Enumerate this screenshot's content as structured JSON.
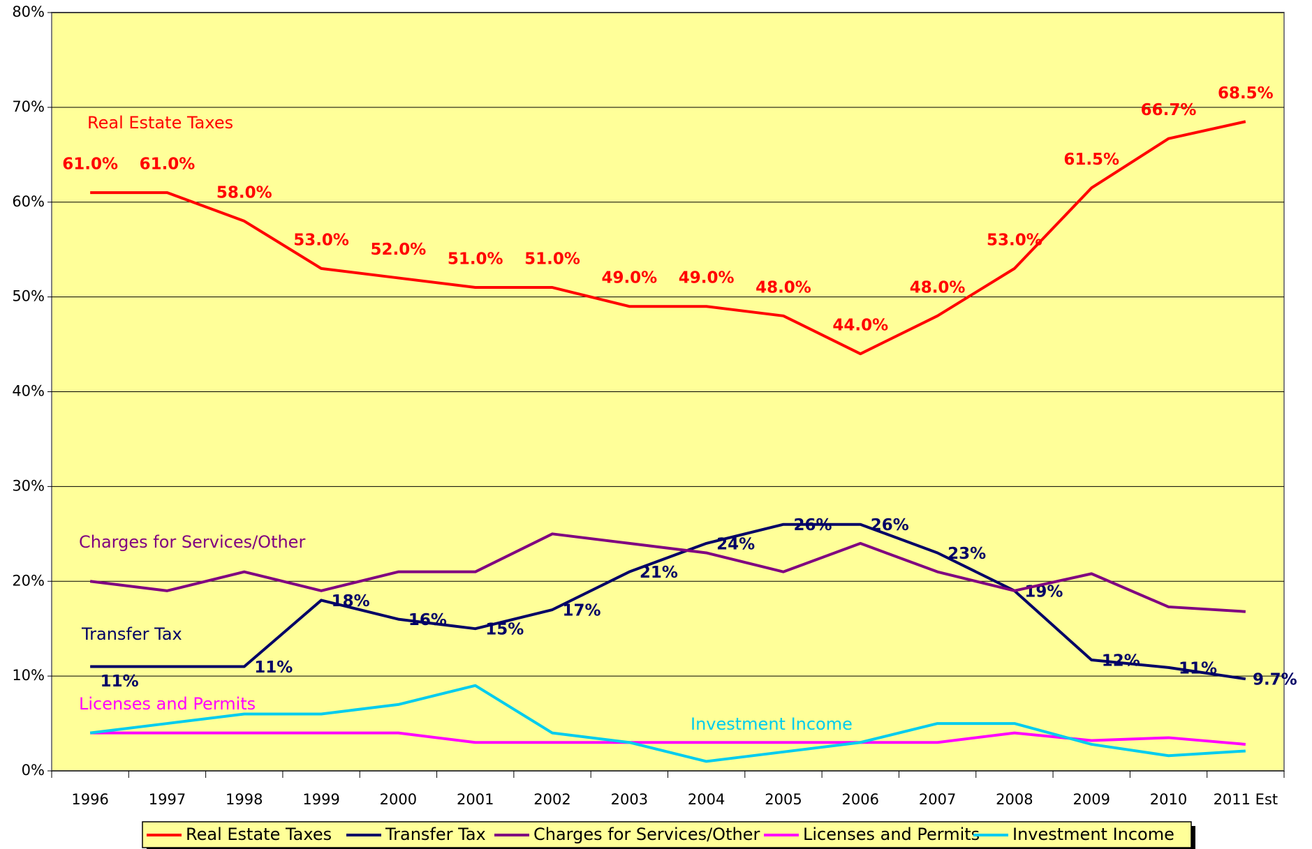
{
  "chart_data": {
    "type": "line",
    "categories": [
      "1996",
      "1997",
      "1998",
      "1999",
      "2000",
      "2001",
      "2002",
      "2003",
      "2004",
      "2005",
      "2006",
      "2007",
      "2008",
      "2009",
      "2010",
      "2011 Est"
    ],
    "ylim": [
      0,
      80
    ],
    "yticks": [
      {
        "value": 0,
        "label": "0%"
      },
      {
        "value": 10,
        "label": "10%"
      },
      {
        "value": 20,
        "label": "20%"
      },
      {
        "value": 30,
        "label": "30%"
      },
      {
        "value": 40,
        "label": "40%"
      },
      {
        "value": 50,
        "label": "50%"
      },
      {
        "value": 60,
        "label": "60%"
      },
      {
        "value": 70,
        "label": "70%"
      },
      {
        "value": 80,
        "label": "80%"
      }
    ],
    "grid": true,
    "legend": "bottom",
    "series": [
      {
        "name": "Real Estate Taxes",
        "color": "#ff0000",
        "values": [
          61,
          61,
          58,
          53,
          52,
          51,
          51,
          49,
          49,
          48,
          44,
          48,
          53,
          61.5,
          66.7,
          68.5
        ],
        "value_labels": [
          "61.0%",
          "61.0%",
          "58.0%",
          "53.0%",
          "52.0%",
          "51.0%",
          "51.0%",
          "49.0%",
          "49.0%",
          "48.0%",
          "44.0%",
          "48.0%",
          "53.0%",
          "61.5%",
          "66.7%",
          "68.5%"
        ]
      },
      {
        "name": "Transfer Tax",
        "color": "#000066",
        "values": [
          11,
          11,
          11,
          18,
          16,
          15,
          17,
          21,
          24,
          26,
          26,
          23,
          19,
          11.7,
          10.9,
          9.7
        ],
        "value_labels": [
          "11%",
          null,
          "11%",
          "18%",
          "16%",
          "15%",
          "17%",
          "21%",
          "24%",
          "26%",
          "26%",
          "23%",
          "19%",
          "12%",
          "11%",
          "9.7%"
        ]
      },
      {
        "name": "Charges for Services/Other",
        "color": "#800080",
        "values": [
          20,
          19,
          21,
          19,
          21,
          21,
          25,
          24,
          23,
          21,
          24,
          21,
          19,
          20.8,
          17.3,
          16.8
        ]
      },
      {
        "name": "Licenses and Permits",
        "color": "#ff00ff",
        "values": [
          4,
          4,
          4,
          4,
          4,
          3,
          3,
          3,
          3,
          3,
          3,
          3,
          4,
          3.2,
          3.5,
          2.8
        ]
      },
      {
        "name": "Investment Income",
        "color": "#00ccee",
        "values": [
          4,
          5,
          6,
          6,
          7,
          9,
          4,
          3,
          1,
          2,
          3,
          5,
          5,
          2.8,
          1.6,
          2.1
        ]
      }
    ]
  }
}
